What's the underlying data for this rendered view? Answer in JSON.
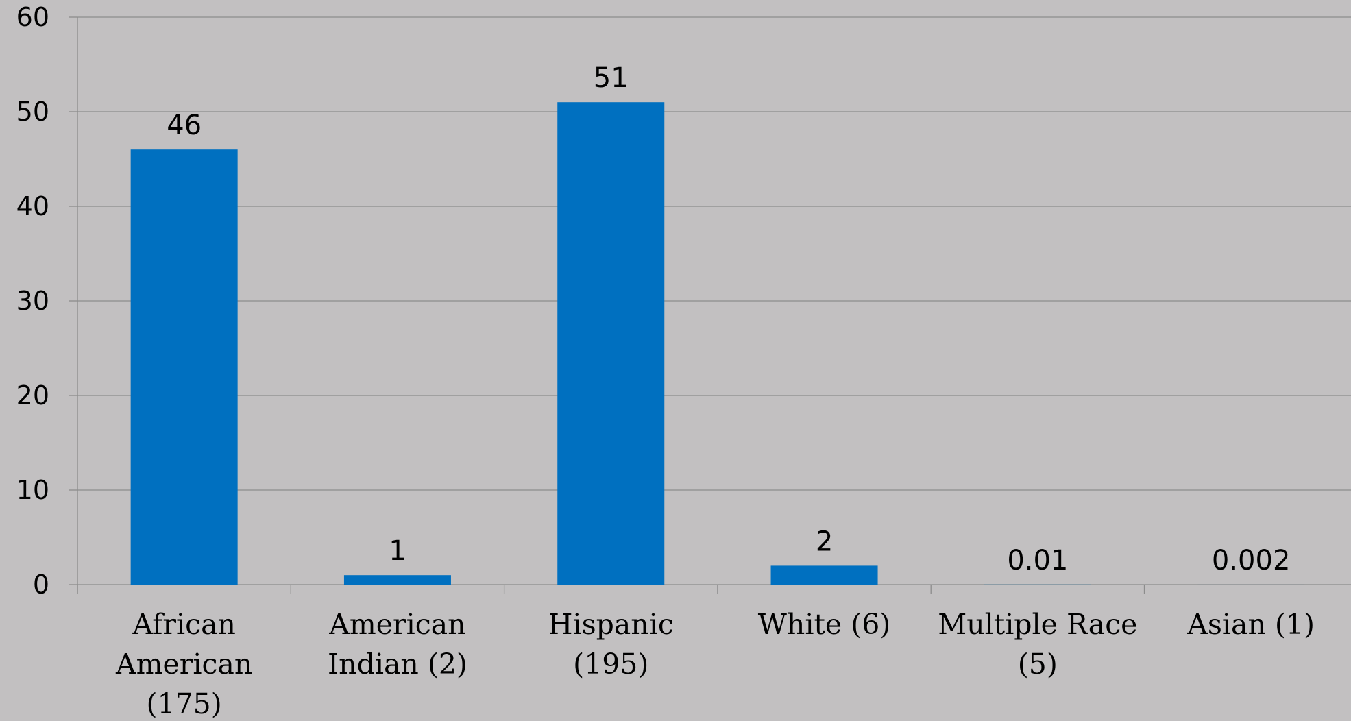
{
  "chart_data": {
    "type": "bar",
    "categories": [
      "African American (175)",
      "American Indian (2)",
      "Hispanic (195)",
      "White (6)",
      "Multiple Race (5)",
      "Asian (1)"
    ],
    "category_lines": [
      [
        "African",
        "American",
        "(175)"
      ],
      [
        "American",
        "Indian (2)"
      ],
      [
        "Hispanic",
        "(195)"
      ],
      [
        "White (6)"
      ],
      [
        "Multiple Race",
        "(5)"
      ],
      [
        "Asian (1)"
      ]
    ],
    "values": [
      46,
      1,
      51,
      2,
      0.01,
      0.002
    ],
    "data_labels": [
      "46",
      "1",
      "51",
      "2",
      "0.01",
      "0.002"
    ],
    "ylim": [
      0,
      60
    ],
    "yticks": [
      0,
      10,
      20,
      30,
      40,
      50,
      60
    ],
    "title": "",
    "xlabel": "",
    "ylabel": "",
    "grid": true,
    "bar_color": "#0070c0",
    "grid_color": "#8c8c8c",
    "background": "#c2c0c1"
  }
}
